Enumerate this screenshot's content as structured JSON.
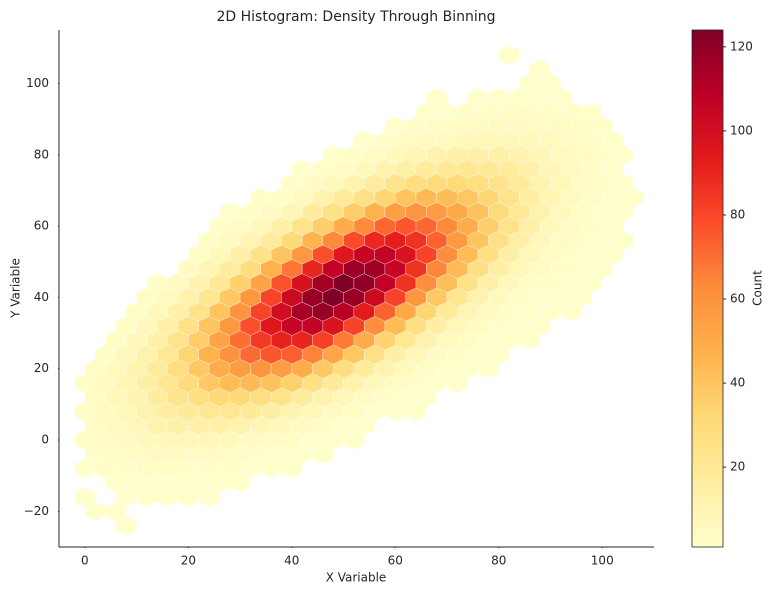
{
  "chart_data": {
    "type": "hexbin",
    "title": "2D Histogram: Density Through Binning",
    "xlabel": "X Variable",
    "ylabel": "Y Variable",
    "colorbar_label": "Count",
    "xlim": [
      -5,
      110
    ],
    "xticks": [
      0,
      20,
      40,
      60,
      80,
      100
    ],
    "ylim": [
      -30,
      115
    ],
    "yticks": [
      {
        "value": -20,
        "label": "−20"
      },
      0,
      20,
      40,
      60,
      80,
      100
    ],
    "clim": [
      1,
      124
    ],
    "cticks": [
      20,
      40,
      60,
      80,
      100,
      120
    ],
    "colormap": [
      "#ffffcc",
      "#ffeda0",
      "#fed976",
      "#feb24c",
      "#fd8d3c",
      "#fc4e2a",
      "#e31a1c",
      "#bd0026",
      "#800026"
    ],
    "rows": [
      {
        "y": -24,
        "x": [
          8
        ],
        "counts": [
          1
        ]
      },
      {
        "y": -20,
        "x": [
          2,
          6
        ],
        "counts": [
          1,
          1
        ]
      },
      {
        "y": -16,
        "x": [
          0,
          8,
          12,
          16,
          20,
          24
        ],
        "counts": [
          1,
          1,
          1,
          1,
          1,
          1
        ]
      },
      {
        "y": -12,
        "x": [
          6,
          10,
          14,
          18,
          22,
          26,
          30
        ],
        "counts": [
          1,
          1,
          1,
          1,
          1,
          1,
          1
        ]
      },
      {
        "y": -8,
        "x": [
          0,
          4,
          8,
          12,
          16,
          20,
          24,
          28,
          32,
          36,
          40
        ],
        "counts": [
          1,
          2,
          2,
          3,
          3,
          2,
          2,
          2,
          1,
          1,
          1
        ]
      },
      {
        "y": -4,
        "x": [
          2,
          6,
          10,
          14,
          18,
          22,
          26,
          30,
          34,
          38,
          42,
          46
        ],
        "counts": [
          2,
          3,
          4,
          5,
          5,
          4,
          4,
          3,
          2,
          1,
          1,
          1
        ]
      },
      {
        "y": 0,
        "x": [
          0,
          4,
          8,
          12,
          16,
          20,
          24,
          28,
          32,
          36,
          40,
          44,
          48,
          52
        ],
        "counts": [
          3,
          4,
          5,
          7,
          8,
          8,
          8,
          7,
          5,
          4,
          3,
          1,
          1,
          1
        ]
      },
      {
        "y": 4,
        "x": [
          2,
          6,
          10,
          14,
          18,
          22,
          26,
          30,
          34,
          38,
          42,
          46,
          50,
          54
        ],
        "counts": [
          4,
          6,
          8,
          11,
          13,
          13,
          13,
          12,
          9,
          7,
          5,
          3,
          1,
          1
        ]
      },
      {
        "y": 8,
        "x": [
          0,
          4,
          8,
          12,
          16,
          20,
          24,
          28,
          32,
          36,
          40,
          44,
          48,
          52,
          56,
          60,
          64
        ],
        "counts": [
          3,
          5,
          8,
          12,
          16,
          19,
          21,
          21,
          19,
          15,
          11,
          8,
          5,
          3,
          1,
          1,
          1
        ]
      },
      {
        "y": 12,
        "x": [
          2,
          6,
          10,
          14,
          18,
          22,
          26,
          30,
          34,
          38,
          42,
          46,
          50,
          54,
          58,
          62,
          66
        ],
        "counts": [
          4,
          7,
          11,
          17,
          23,
          28,
          31,
          31,
          28,
          24,
          18,
          12,
          8,
          4,
          2,
          1,
          1
        ]
      },
      {
        "y": 16,
        "x": [
          0,
          4,
          8,
          12,
          16,
          20,
          24,
          28,
          32,
          36,
          40,
          44,
          48,
          52,
          56,
          60,
          64,
          68,
          72
        ],
        "counts": [
          2,
          5,
          9,
          15,
          22,
          30,
          38,
          43,
          44,
          41,
          35,
          27,
          19,
          12,
          7,
          4,
          2,
          1,
          1
        ]
      },
      {
        "y": 20,
        "x": [
          2,
          6,
          10,
          14,
          18,
          22,
          26,
          30,
          34,
          38,
          42,
          46,
          50,
          54,
          58,
          62,
          66,
          70,
          74,
          78
        ],
        "counts": [
          3,
          6,
          11,
          18,
          28,
          38,
          49,
          56,
          59,
          56,
          49,
          38,
          28,
          18,
          11,
          6,
          3,
          1,
          1,
          1
        ]
      },
      {
        "y": 24,
        "x": [
          4,
          8,
          12,
          16,
          20,
          24,
          28,
          32,
          36,
          40,
          44,
          48,
          52,
          56,
          60,
          64,
          68,
          72,
          76,
          80
        ],
        "counts": [
          3,
          7,
          12,
          21,
          33,
          47,
          60,
          71,
          76,
          74,
          65,
          52,
          38,
          26,
          15,
          8,
          4,
          2,
          1,
          1
        ]
      },
      {
        "y": 28,
        "x": [
          6,
          10,
          14,
          18,
          22,
          26,
          30,
          34,
          38,
          42,
          46,
          50,
          54,
          58,
          62,
          66,
          70,
          74,
          78,
          82,
          86
        ],
        "counts": [
          3,
          7,
          13,
          23,
          37,
          53,
          70,
          84,
          91,
          90,
          82,
          67,
          50,
          34,
          21,
          12,
          6,
          3,
          1,
          1,
          1
        ]
      },
      {
        "y": 32,
        "x": [
          8,
          12,
          16,
          20,
          24,
          28,
          32,
          36,
          40,
          44,
          48,
          52,
          56,
          60,
          64,
          68,
          72,
          76,
          80,
          84,
          88
        ],
        "counts": [
          3,
          7,
          14,
          25,
          40,
          58,
          78,
          95,
          105,
          106,
          97,
          81,
          62,
          43,
          27,
          15,
          8,
          4,
          2,
          1,
          1
        ]
      },
      {
        "y": 36,
        "x": [
          10,
          14,
          18,
          22,
          26,
          30,
          34,
          38,
          42,
          46,
          50,
          54,
          58,
          62,
          66,
          70,
          74,
          78,
          82,
          86,
          90,
          94
        ],
        "counts": [
          3,
          7,
          13,
          24,
          40,
          59,
          81,
          101,
          114,
          118,
          110,
          93,
          73,
          51,
          33,
          19,
          10,
          5,
          2,
          1,
          1,
          1
        ]
      },
      {
        "y": 40,
        "x": [
          12,
          16,
          20,
          24,
          28,
          32,
          36,
          40,
          44,
          48,
          52,
          56,
          60,
          64,
          68,
          72,
          76,
          80,
          84,
          88,
          92,
          96
        ],
        "counts": [
          3,
          6,
          12,
          22,
          38,
          58,
          81,
          103,
          118,
          124,
          118,
          103,
          81,
          58,
          38,
          22,
          12,
          6,
          3,
          1,
          1,
          1
        ]
      },
      {
        "y": 44,
        "x": [
          14,
          18,
          22,
          26,
          30,
          34,
          38,
          42,
          46,
          50,
          54,
          58,
          62,
          66,
          70,
          74,
          78,
          82,
          86,
          90,
          94,
          98
        ],
        "counts": [
          2,
          5,
          11,
          20,
          35,
          53,
          77,
          98,
          115,
          124,
          120,
          107,
          86,
          62,
          42,
          25,
          14,
          7,
          3,
          2,
          1,
          1
        ]
      },
      {
        "y": 48,
        "x": [
          20,
          24,
          28,
          32,
          36,
          40,
          44,
          48,
          52,
          56,
          60,
          64,
          68,
          72,
          76,
          80,
          84,
          88,
          92,
          96,
          100
        ],
        "counts": [
          4,
          9,
          17,
          29,
          47,
          68,
          90,
          107,
          117,
          116,
          105,
          86,
          64,
          44,
          27,
          15,
          8,
          4,
          2,
          1,
          1
        ]
      },
      {
        "y": 52,
        "x": [
          22,
          26,
          30,
          34,
          38,
          42,
          46,
          50,
          54,
          58,
          62,
          66,
          70,
          74,
          78,
          82,
          86,
          90,
          94,
          98,
          102
        ],
        "counts": [
          3,
          7,
          14,
          25,
          40,
          58,
          78,
          95,
          105,
          106,
          97,
          81,
          62,
          43,
          27,
          15,
          8,
          4,
          2,
          1,
          1
        ]
      },
      {
        "y": 56,
        "x": [
          24,
          28,
          32,
          36,
          40,
          44,
          48,
          52,
          56,
          60,
          64,
          68,
          72,
          76,
          80,
          84,
          88,
          92,
          96,
          100,
          104
        ],
        "counts": [
          2,
          5,
          10,
          18,
          31,
          46,
          63,
          79,
          89,
          92,
          86,
          73,
          57,
          40,
          26,
          15,
          8,
          4,
          2,
          1,
          1
        ]
      },
      {
        "y": 60,
        "x": [
          26,
          30,
          34,
          38,
          42,
          46,
          50,
          54,
          58,
          62,
          66,
          70,
          74,
          78,
          82,
          86,
          90,
          94,
          98,
          102
        ],
        "counts": [
          2,
          4,
          7,
          14,
          24,
          36,
          49,
          63,
          72,
          76,
          72,
          63,
          49,
          36,
          24,
          14,
          7,
          4,
          2,
          1
        ]
      },
      {
        "y": 64,
        "x": [
          28,
          32,
          36,
          40,
          44,
          48,
          52,
          56,
          60,
          64,
          68,
          72,
          76,
          80,
          84,
          88,
          92,
          96,
          100,
          104
        ],
        "counts": [
          1,
          2,
          5,
          9,
          17,
          25,
          37,
          47,
          55,
          59,
          57,
          51,
          41,
          30,
          20,
          12,
          6,
          3,
          1,
          1
        ]
      },
      {
        "y": 68,
        "x": [
          34,
          38,
          42,
          46,
          50,
          54,
          58,
          62,
          66,
          70,
          74,
          78,
          82,
          86,
          90,
          94,
          98,
          102,
          106
        ],
        "counts": [
          2,
          3,
          6,
          11,
          18,
          26,
          33,
          40,
          44,
          43,
          39,
          32,
          24,
          16,
          10,
          6,
          3,
          1,
          1
        ]
      },
      {
        "y": 72,
        "x": [
          40,
          44,
          48,
          52,
          56,
          60,
          64,
          68,
          72,
          76,
          80,
          84,
          88,
          92,
          96,
          100,
          104
        ],
        "counts": [
          2,
          4,
          7,
          11,
          17,
          23,
          28,
          30,
          31,
          28,
          24,
          18,
          12,
          8,
          4,
          2,
          1
        ]
      },
      {
        "y": 76,
        "x": [
          42,
          46,
          50,
          54,
          58,
          62,
          66,
          70,
          74,
          78,
          82,
          86,
          90,
          94,
          98,
          102
        ],
        "counts": [
          1,
          2,
          4,
          7,
          11,
          14,
          18,
          20,
          21,
          20,
          17,
          13,
          9,
          6,
          3,
          1
        ]
      },
      {
        "y": 80,
        "x": [
          48,
          52,
          56,
          60,
          64,
          68,
          72,
          76,
          80,
          84,
          88,
          92,
          96,
          100,
          104
        ],
        "counts": [
          1,
          2,
          4,
          6,
          9,
          11,
          13,
          13,
          13,
          11,
          9,
          6,
          4,
          2,
          1
        ]
      },
      {
        "y": 84,
        "x": [
          54,
          58,
          62,
          66,
          70,
          74,
          78,
          82,
          86,
          90,
          94,
          98,
          102
        ],
        "counts": [
          1,
          2,
          4,
          5,
          6,
          8,
          8,
          8,
          7,
          6,
          4,
          3,
          1
        ]
      },
      {
        "y": 88,
        "x": [
          60,
          64,
          68,
          72,
          76,
          80,
          84,
          88,
          92,
          96,
          100
        ],
        "counts": [
          1,
          2,
          3,
          4,
          4,
          5,
          5,
          4,
          4,
          3,
          2
        ]
      },
      {
        "y": 92,
        "x": [
          66,
          70,
          74,
          78,
          82,
          86,
          90,
          94,
          98
        ],
        "counts": [
          1,
          1,
          2,
          2,
          3,
          3,
          2,
          2,
          1
        ]
      },
      {
        "y": 96,
        "x": [
          68,
          76,
          80,
          84,
          88,
          92
        ],
        "counts": [
          1,
          1,
          1,
          1,
          1,
          1
        ]
      },
      {
        "y": 100,
        "x": [
          86,
          90
        ],
        "counts": [
          1,
          1
        ]
      },
      {
        "y": 104,
        "x": [
          88
        ],
        "counts": [
          1
        ]
      },
      {
        "y": 108,
        "x": [
          82
        ],
        "counts": [
          1
        ]
      }
    ]
  }
}
